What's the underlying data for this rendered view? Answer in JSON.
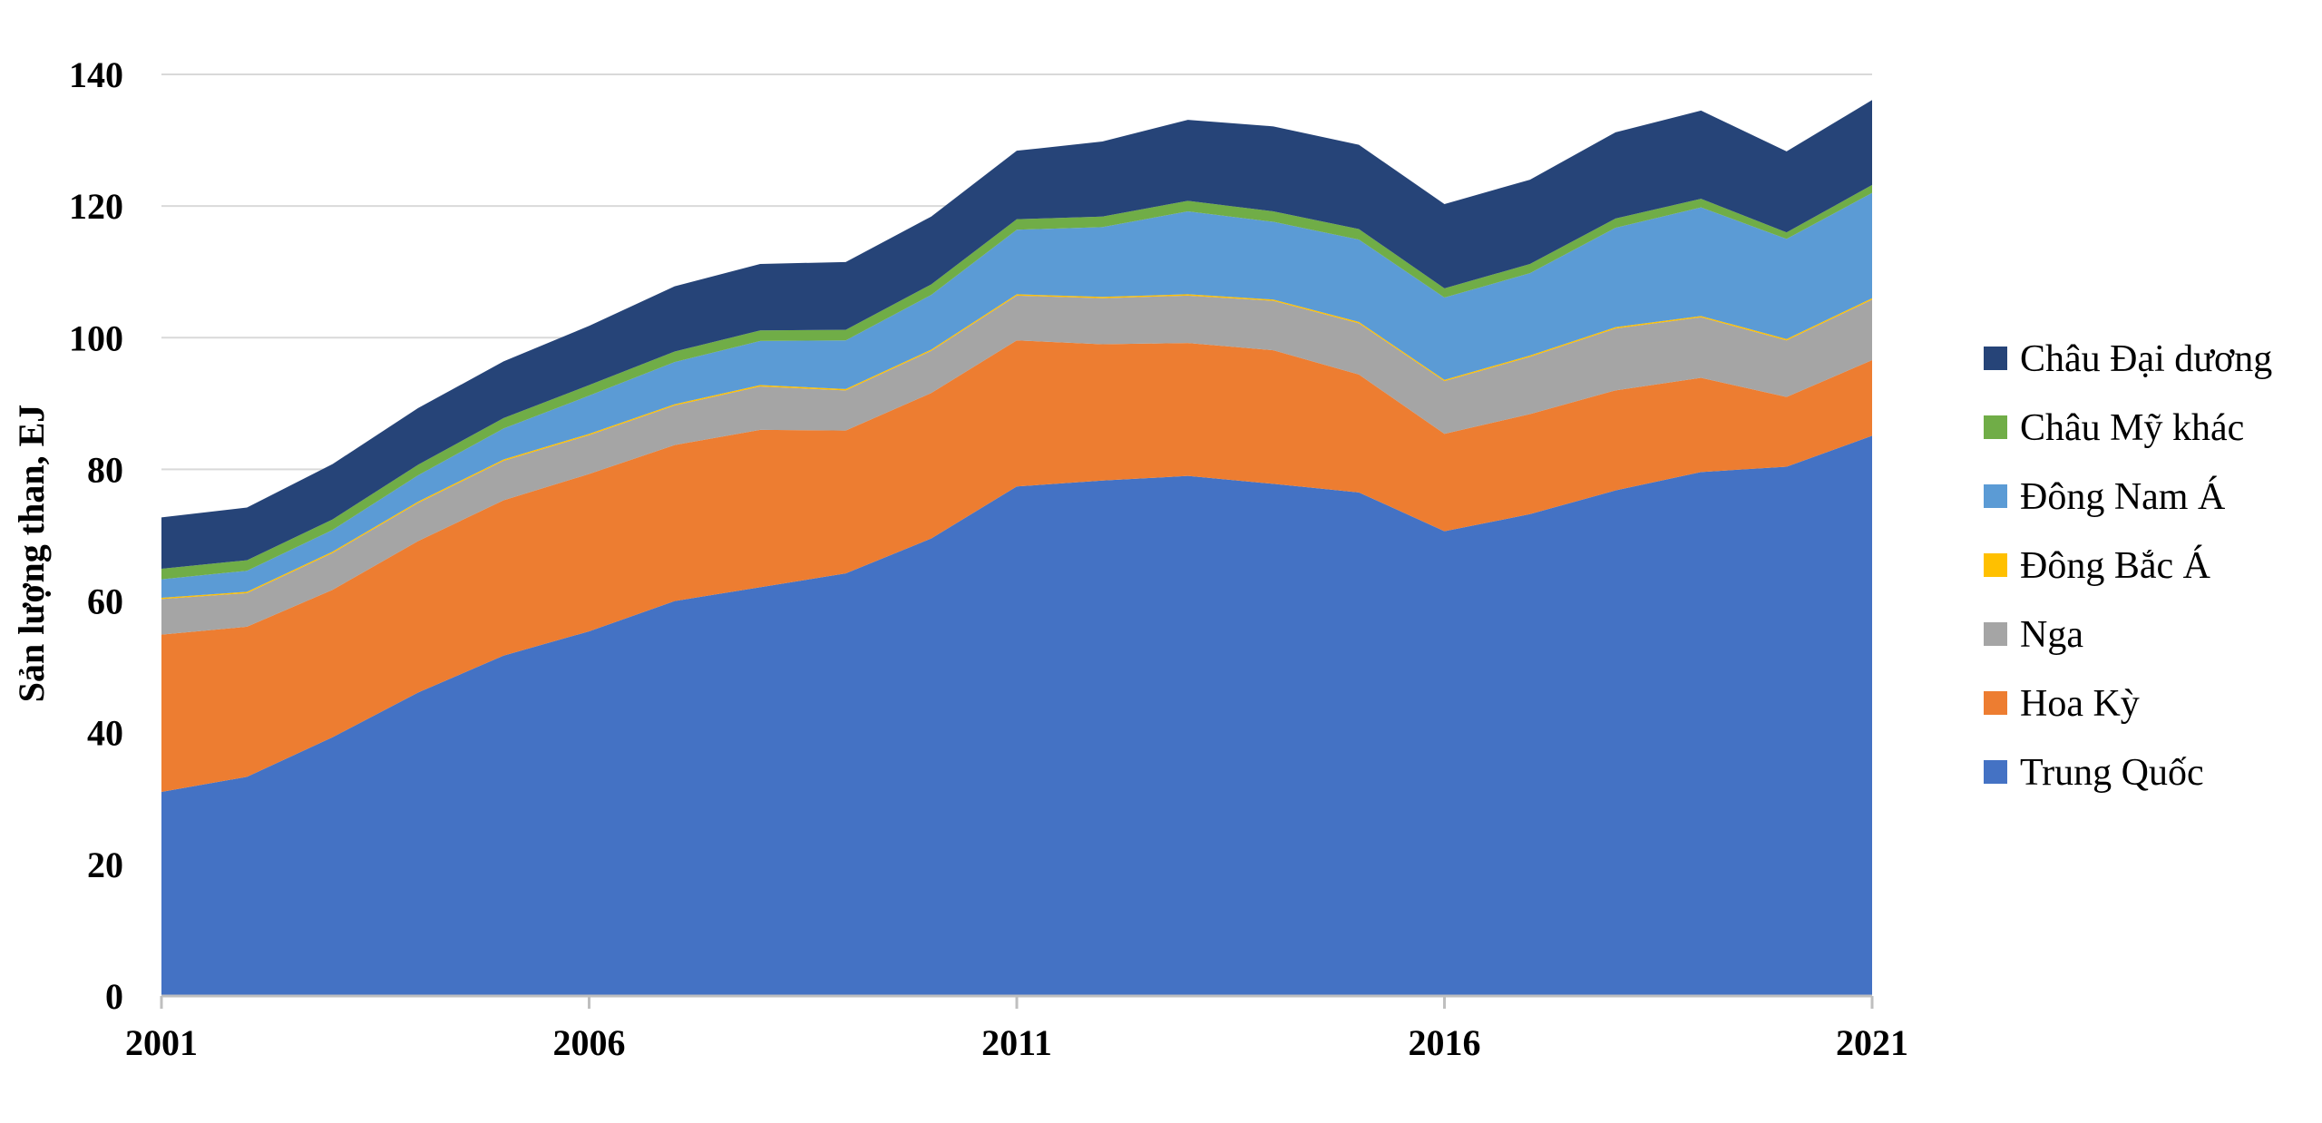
{
  "chart_data": {
    "type": "area",
    "stacked": true,
    "title": "",
    "xlabel": "",
    "ylabel": "Sản lượng than, EJ",
    "ylim": [
      0,
      140
    ],
    "yticks": [
      0,
      20,
      40,
      60,
      80,
      100,
      120,
      140
    ],
    "xlim": [
      2001,
      2021
    ],
    "xticks": [
      2001,
      2006,
      2011,
      2016,
      2021
    ],
    "grid": true,
    "legend_position": "right",
    "x": [
      2001,
      2002,
      2003,
      2004,
      2005,
      2006,
      2007,
      2008,
      2009,
      2010,
      2011,
      2012,
      2013,
      2014,
      2015,
      2016,
      2017,
      2018,
      2019,
      2020,
      2021
    ],
    "series": [
      {
        "name": "Trung Quốc",
        "color": "#4472C4",
        "values": [
          31.0,
          33.3,
          39.3,
          46.1,
          51.7,
          55.4,
          60.0,
          62.1,
          64.2,
          69.5,
          77.4,
          78.3,
          79.0,
          77.8,
          76.5,
          70.6,
          73.2,
          76.8,
          79.6,
          80.4,
          85.1
        ]
      },
      {
        "name": "Hoa Kỳ",
        "color": "#ED7D31",
        "values": [
          23.9,
          22.8,
          22.4,
          23.0,
          23.6,
          23.9,
          23.7,
          23.9,
          21.7,
          22.1,
          22.2,
          20.7,
          20.2,
          20.3,
          17.9,
          14.8,
          15.2,
          15.2,
          14.3,
          10.6,
          11.5
        ]
      },
      {
        "name": "Nga",
        "color": "#A5A5A5",
        "values": [
          5.4,
          5.1,
          5.6,
          5.8,
          6.0,
          5.9,
          6.0,
          6.6,
          6.1,
          6.4,
          6.8,
          7.0,
          7.2,
          7.5,
          7.8,
          8.0,
          8.7,
          9.4,
          9.2,
          8.6,
          9.2
        ]
      },
      {
        "name": "Đông Bắc Á",
        "color": "#FFC000",
        "values": [
          0.2,
          0.2,
          0.2,
          0.2,
          0.2,
          0.2,
          0.2,
          0.2,
          0.2,
          0.2,
          0.2,
          0.2,
          0.2,
          0.2,
          0.2,
          0.2,
          0.2,
          0.2,
          0.2,
          0.2,
          0.2
        ]
      },
      {
        "name": "Đông Nam Á",
        "color": "#5B9BD5",
        "values": [
          2.8,
          3.2,
          3.3,
          4.0,
          4.7,
          5.8,
          6.4,
          6.7,
          7.4,
          8.3,
          9.8,
          10.6,
          12.6,
          11.8,
          12.5,
          12.5,
          12.5,
          15.1,
          16.5,
          15.2,
          16.0
        ]
      },
      {
        "name": "Châu Mỹ khác",
        "color": "#70AD47",
        "values": [
          1.6,
          1.6,
          1.6,
          1.6,
          1.6,
          1.6,
          1.6,
          1.6,
          1.6,
          1.6,
          1.6,
          1.6,
          1.6,
          1.6,
          1.6,
          1.4,
          1.4,
          1.4,
          1.3,
          1.0,
          1.2
        ]
      },
      {
        "name": "Châu Đại dương",
        "color": "#264478",
        "values": [
          7.8,
          8.0,
          8.4,
          8.6,
          8.6,
          9.0,
          9.9,
          10.1,
          10.3,
          10.3,
          10.4,
          11.4,
          12.3,
          12.9,
          12.8,
          12.8,
          12.8,
          13.1,
          13.4,
          12.3,
          12.9
        ]
      }
    ],
    "legend_order": [
      "Châu Đại dương",
      "Châu Mỹ khác",
      "Đông Nam Á",
      "Đông Bắc Á",
      "Nga",
      "Hoa Kỳ",
      "Trung Quốc"
    ]
  }
}
